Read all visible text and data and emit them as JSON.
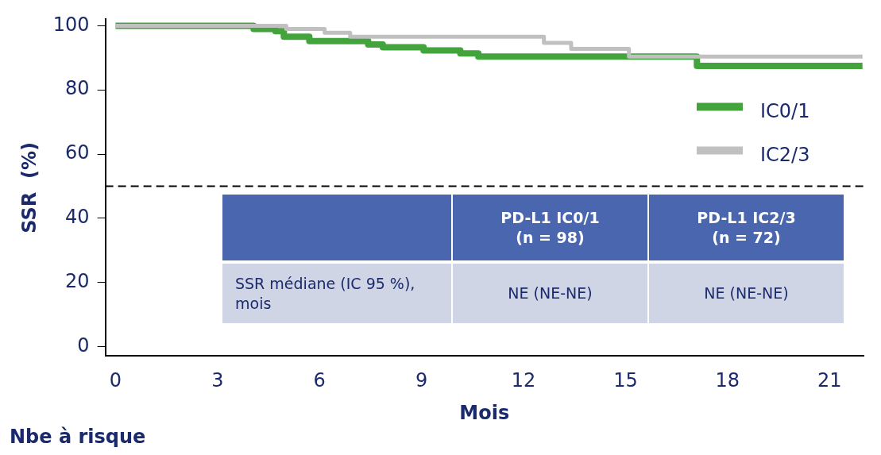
{
  "chart_data": {
    "type": "step",
    "xlabel": "Mois",
    "ylabel": "SSR  (%)",
    "xlim": [
      -0.3,
      22
    ],
    "xticks": [
      0,
      3,
      6,
      9,
      12,
      15,
      18,
      21
    ],
    "ylim": [
      -3,
      102
    ],
    "yticks": [
      0,
      20,
      40,
      60,
      80,
      100
    ],
    "grid": false,
    "legend": "top right",
    "line_style": "solid",
    "marker": "none",
    "ref_lines": [
      {
        "axis": "y",
        "value": 50,
        "line_style": "dashed",
        "color": "#000000"
      }
    ],
    "series": [
      {
        "name": "IC0/1",
        "color": "#43a33c",
        "x": [
          0,
          4.06,
          4.7,
          4.95,
          5.7,
          7.43,
          7.86,
          9.06,
          10.14,
          10.67,
          17.1,
          21.97
        ],
        "values": [
          100,
          99,
          98.3,
          96.6,
          95.2,
          94.2,
          93.3,
          92.3,
          91.4,
          90.4,
          87.5,
          87.5
        ]
      },
      {
        "name": "IC2/3",
        "color": "#c0c0c0",
        "x": [
          0,
          5.02,
          6.15,
          6.9,
          12.6,
          13.4,
          15.1,
          21.97
        ],
        "values": [
          100,
          99,
          97.8,
          96.6,
          94.7,
          92.8,
          90.4,
          90.4
        ]
      }
    ],
    "annotations": [
      "PD-L1 IC0/1\n(n = 98)",
      "PD-L1 IC2/3\n(n = 72)",
      "SSR médiane (IC 95 %),\nmois",
      "NE (NE-NE)",
      "NE (NE-NE)",
      "Nbe à risque"
    ]
  }
}
